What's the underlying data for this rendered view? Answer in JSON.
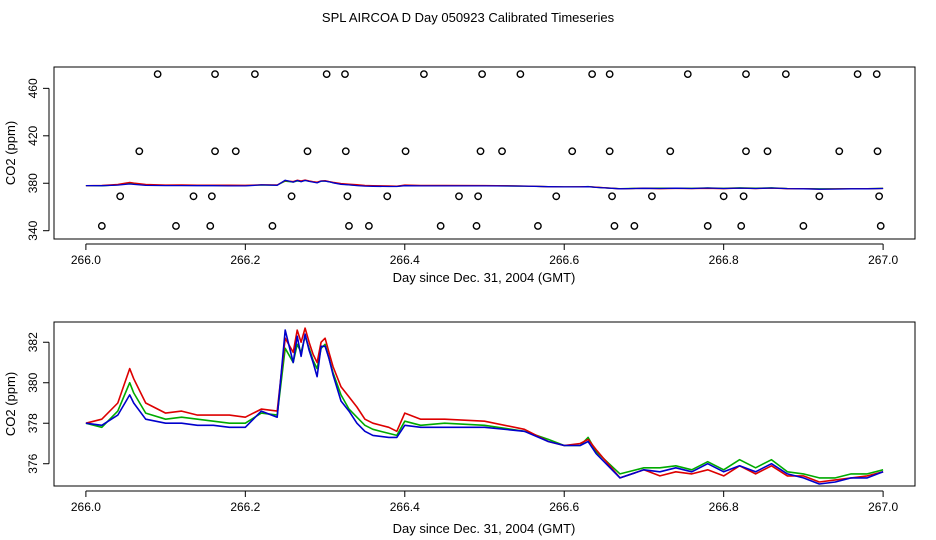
{
  "title": "SPL AIRCOA D  Day 050923  Calibrated Timeseries",
  "colors": {
    "series_red": "#dd0000",
    "series_green": "#00aa00",
    "series_blue": "#0000cc",
    "axis": "#000000"
  },
  "chart_data": [
    {
      "type": "scatter+line",
      "xlabel": "Day since Dec. 31, 2004 (GMT)",
      "ylabel": "CO2 (ppm)",
      "xlim": [
        265.96,
        267.04
      ],
      "ylim": [
        333,
        478
      ],
      "xticks": [
        266.0,
        266.2,
        266.4,
        266.6,
        266.8,
        267.0
      ],
      "xtick_labels": [
        "266.0",
        "266.2",
        "266.4",
        "266.6",
        "266.8",
        "267.0"
      ],
      "yticks": [
        340,
        380,
        420,
        460
      ],
      "ytick_labels": [
        "340",
        "380",
        "420",
        "460"
      ],
      "reference_points": [
        {
          "level": 472,
          "x": [
            266.09,
            266.162,
            266.212,
            266.302,
            266.325,
            266.424,
            266.497,
            266.545,
            266.635,
            266.657,
            266.755,
            266.828,
            266.878,
            266.968,
            266.992
          ]
        },
        {
          "level": 407,
          "x": [
            266.067,
            266.162,
            266.188,
            266.278,
            266.326,
            266.401,
            266.495,
            266.522,
            266.61,
            266.657,
            266.733,
            266.828,
            266.855,
            266.945,
            266.993
          ]
        },
        {
          "level": 369,
          "x": [
            266.043,
            266.135,
            266.158,
            266.258,
            266.328,
            266.378,
            266.468,
            266.492,
            266.59,
            266.66,
            266.71,
            266.8,
            266.825,
            266.92,
            266.995
          ]
        },
        {
          "level": 344,
          "x": [
            266.02,
            266.113,
            266.156,
            266.234,
            266.33,
            266.355,
            266.445,
            266.49,
            266.567,
            266.663,
            266.688,
            266.78,
            266.822,
            266.9,
            266.997
          ]
        }
      ],
      "series_note": "same three series as the lower panel, drawn at this panel's scale"
    },
    {
      "type": "line",
      "xlabel": "Day since Dec. 31, 2004 (GMT)",
      "ylabel": "CO2 (ppm)",
      "xlim": [
        265.96,
        267.04
      ],
      "ylim": [
        374.9,
        383.0
      ],
      "xticks": [
        266.0,
        266.2,
        266.4,
        266.6,
        266.8,
        267.0
      ],
      "xtick_labels": [
        "266.0",
        "266.2",
        "266.4",
        "266.6",
        "266.8",
        "267.0"
      ],
      "yticks": [
        376,
        378,
        380,
        382
      ],
      "ytick_labels": [
        "376",
        "378",
        "380",
        "382"
      ],
      "x": [
        266.0,
        266.02,
        266.04,
        266.055,
        266.06,
        266.075,
        266.1,
        266.12,
        266.14,
        266.16,
        266.18,
        266.2,
        266.22,
        266.24,
        266.25,
        266.26,
        266.265,
        266.27,
        266.275,
        266.28,
        266.285,
        266.29,
        266.295,
        266.3,
        266.305,
        266.31,
        266.32,
        266.33,
        266.34,
        266.35,
        266.36,
        266.38,
        266.39,
        266.4,
        266.42,
        266.45,
        266.5,
        266.55,
        266.58,
        266.6,
        266.62,
        266.63,
        266.64,
        266.67,
        266.7,
        266.72,
        266.74,
        266.76,
        266.78,
        266.8,
        266.82,
        266.84,
        266.86,
        266.88,
        266.9,
        266.92,
        266.94,
        266.96,
        266.98,
        267.0
      ],
      "series": [
        {
          "name": "red",
          "color": "#dd0000",
          "values": [
            378.0,
            378.2,
            379.0,
            380.7,
            380.2,
            379.0,
            378.5,
            378.6,
            378.4,
            378.4,
            378.4,
            378.3,
            378.7,
            378.6,
            382.2,
            381.5,
            382.6,
            382.0,
            382.7,
            382.0,
            381.4,
            381.0,
            382.0,
            382.2,
            381.5,
            380.8,
            379.8,
            379.3,
            378.8,
            378.2,
            378.0,
            377.8,
            377.6,
            378.5,
            378.2,
            378.2,
            378.1,
            377.7,
            377.1,
            376.9,
            377.0,
            377.2,
            376.7,
            375.3,
            375.7,
            375.4,
            375.6,
            375.5,
            375.7,
            375.4,
            375.9,
            375.5,
            375.9,
            375.4,
            375.4,
            375.1,
            375.2,
            375.3,
            375.4,
            375.6
          ]
        },
        {
          "name": "green",
          "color": "#00aa00",
          "values": [
            378.0,
            377.8,
            378.6,
            380.0,
            379.5,
            378.5,
            378.2,
            378.3,
            378.2,
            378.1,
            378.0,
            378.0,
            378.5,
            378.4,
            381.7,
            381.0,
            381.9,
            381.5,
            382.3,
            381.7,
            381.1,
            380.7,
            381.7,
            381.9,
            381.2,
            380.5,
            379.4,
            378.7,
            378.3,
            377.9,
            377.7,
            377.5,
            377.4,
            378.1,
            377.9,
            378.0,
            377.9,
            377.6,
            377.2,
            376.9,
            376.9,
            377.3,
            376.6,
            375.5,
            375.8,
            375.8,
            375.9,
            375.7,
            376.1,
            375.7,
            376.2,
            375.8,
            376.2,
            375.6,
            375.5,
            375.3,
            375.3,
            375.5,
            375.5,
            375.7
          ]
        },
        {
          "name": "blue",
          "color": "#0000cc",
          "values": [
            378.0,
            377.9,
            378.4,
            379.4,
            379.0,
            378.2,
            378.0,
            378.0,
            377.9,
            377.9,
            377.8,
            377.8,
            378.6,
            378.3,
            382.6,
            381.0,
            382.3,
            381.3,
            382.4,
            381.6,
            381.0,
            380.3,
            381.8,
            381.8,
            381.2,
            380.4,
            379.1,
            378.6,
            378.0,
            377.6,
            377.4,
            377.3,
            377.3,
            377.9,
            377.8,
            377.8,
            377.8,
            377.6,
            377.1,
            376.9,
            376.9,
            377.1,
            376.5,
            375.3,
            375.7,
            375.6,
            375.8,
            375.6,
            376.0,
            375.6,
            375.9,
            375.6,
            376.0,
            375.5,
            375.3,
            375.0,
            375.1,
            375.3,
            375.3,
            375.6
          ]
        }
      ]
    }
  ]
}
